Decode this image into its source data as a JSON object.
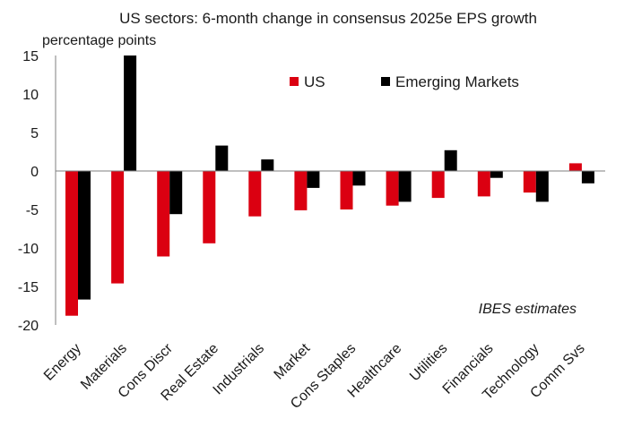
{
  "chart_data": {
    "type": "bar",
    "title": "US sectors: 6-month change in consensus 2025e EPS growth",
    "ylabel": "percentage points",
    "xlabel": "",
    "ylim": [
      -20,
      15
    ],
    "yticks": [
      15,
      10,
      5,
      0,
      -5,
      -10,
      -15,
      -20
    ],
    "categories": [
      "Energy",
      "Materials",
      "Cons Discr",
      "Real Estate",
      "Industrials",
      "Market",
      "Cons Staples",
      "Healthcare",
      "Utilities",
      "Financials",
      "Technology",
      "Comm Svs"
    ],
    "series": [
      {
        "name": "US",
        "color": "#db0011",
        "values": [
          -18.8,
          -14.6,
          -11.1,
          -9.4,
          -5.9,
          -5.1,
          -5.0,
          -4.5,
          -3.5,
          -3.3,
          -2.8,
          1.0
        ]
      },
      {
        "name": "Emerging Markets",
        "color": "#000000",
        "values": [
          -16.7,
          16.0,
          -5.6,
          3.3,
          1.5,
          -2.2,
          -1.9,
          -4.0,
          2.7,
          -0.9,
          -4.0,
          -1.6
        ]
      }
    ],
    "annotation": "IBES estimates",
    "legend_position": "top-right",
    "grid": false
  }
}
